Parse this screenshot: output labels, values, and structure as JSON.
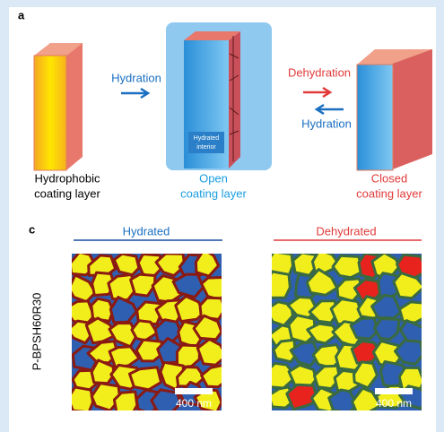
{
  "panel_a": {
    "label": "a",
    "step1": "Hydration",
    "step2": "Dehydration",
    "step3": "Hydration",
    "inner": [
      "Hydrated",
      "interior"
    ],
    "left_caption": [
      "Hydrophobic",
      "coating layer"
    ],
    "middle_caption": [
      "Open",
      "coating layer"
    ],
    "right_caption": [
      "Closed",
      "coating layer"
    ]
  },
  "panel_c": {
    "label": "c",
    "left_title": "Hydrated",
    "right_title": "Dehydrated",
    "sample": "P-BPSH60R30",
    "left_scale": "400 nm",
    "right_scale": "400 nm"
  }
}
